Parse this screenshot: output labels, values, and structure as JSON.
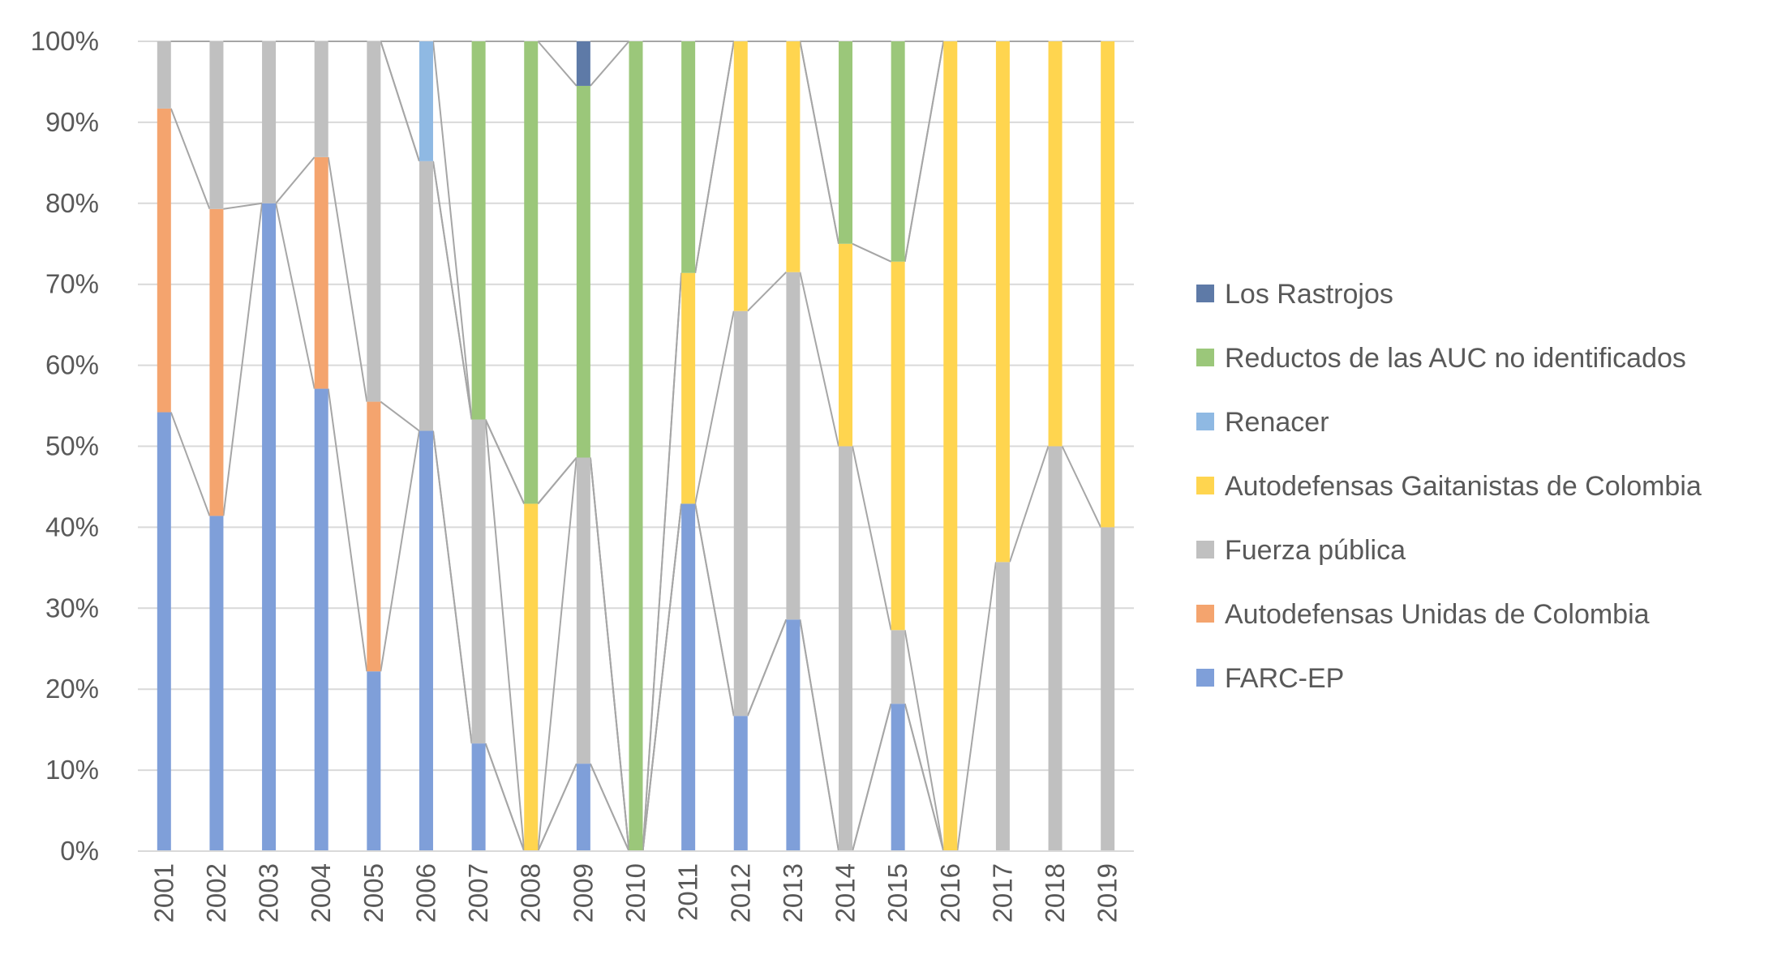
{
  "chart_data": {
    "type": "bar",
    "stacked": true,
    "percent": true,
    "title": "",
    "xlabel": "",
    "ylabel": "",
    "ylim": [
      0,
      100
    ],
    "y_ticks": [
      "0%",
      "10%",
      "20%",
      "30%",
      "40%",
      "50%",
      "60%",
      "70%",
      "80%",
      "90%",
      "100%"
    ],
    "grid": true,
    "legend_position": "right",
    "series_lines": true,
    "categories": [
      "2001",
      "2002",
      "2003",
      "2004",
      "2005",
      "2006",
      "2007",
      "2008",
      "2009",
      "2010",
      "2011",
      "2012",
      "2013",
      "2014",
      "2015",
      "2016",
      "2017",
      "2018",
      "2019"
    ],
    "series": [
      {
        "name": "FARC-EP",
        "color": "#7f9fd9",
        "values": [
          54.2,
          41.4,
          80.0,
          57.1,
          22.2,
          51.9,
          13.3,
          0,
          10.8,
          0,
          42.9,
          16.7,
          28.6,
          0,
          18.2,
          0,
          0,
          0,
          0
        ]
      },
      {
        "name": "Autodefensas Unidas de Colombia",
        "color": "#f4a46e",
        "values": [
          37.5,
          37.9,
          0,
          28.6,
          33.3,
          0,
          0,
          0,
          0,
          0,
          0,
          0,
          0,
          0,
          0,
          0,
          0,
          0,
          0
        ]
      },
      {
        "name": "Fuerza pública",
        "color": "#c0c0c0",
        "values": [
          8.3,
          20.7,
          20.0,
          14.3,
          44.5,
          33.3,
          40.0,
          0,
          37.8,
          0,
          0,
          50.0,
          42.9,
          50.0,
          9.1,
          0,
          35.7,
          50.0,
          40.0
        ]
      },
      {
        "name": "Autodefensas Gaitanistas de Colombia",
        "color": "#ffd54f",
        "values": [
          0,
          0,
          0,
          0,
          0,
          0,
          0,
          42.9,
          0,
          0,
          28.5,
          33.3,
          28.5,
          25.0,
          45.5,
          100,
          64.3,
          50.0,
          60.0
        ]
      },
      {
        "name": "Renacer",
        "color": "#8fb9e3",
        "values": [
          0,
          0,
          0,
          0,
          0,
          14.8,
          0,
          0,
          0,
          0,
          0,
          0,
          0,
          0,
          0,
          0,
          0,
          0,
          0
        ]
      },
      {
        "name": "Reductos de las AUC no identificados",
        "color": "#9bc77a",
        "values": [
          0,
          0,
          0,
          0,
          0,
          0,
          46.7,
          57.1,
          45.9,
          100,
          28.6,
          0,
          0,
          25.0,
          27.2,
          0,
          0,
          0,
          0
        ]
      },
      {
        "name": "Los Rastrojos",
        "color": "#5e7aa7",
        "values": [
          0,
          0,
          0,
          0,
          0,
          0,
          0,
          0,
          5.5,
          0,
          0,
          0,
          0,
          0,
          0,
          0,
          0,
          0,
          0
        ]
      }
    ]
  }
}
